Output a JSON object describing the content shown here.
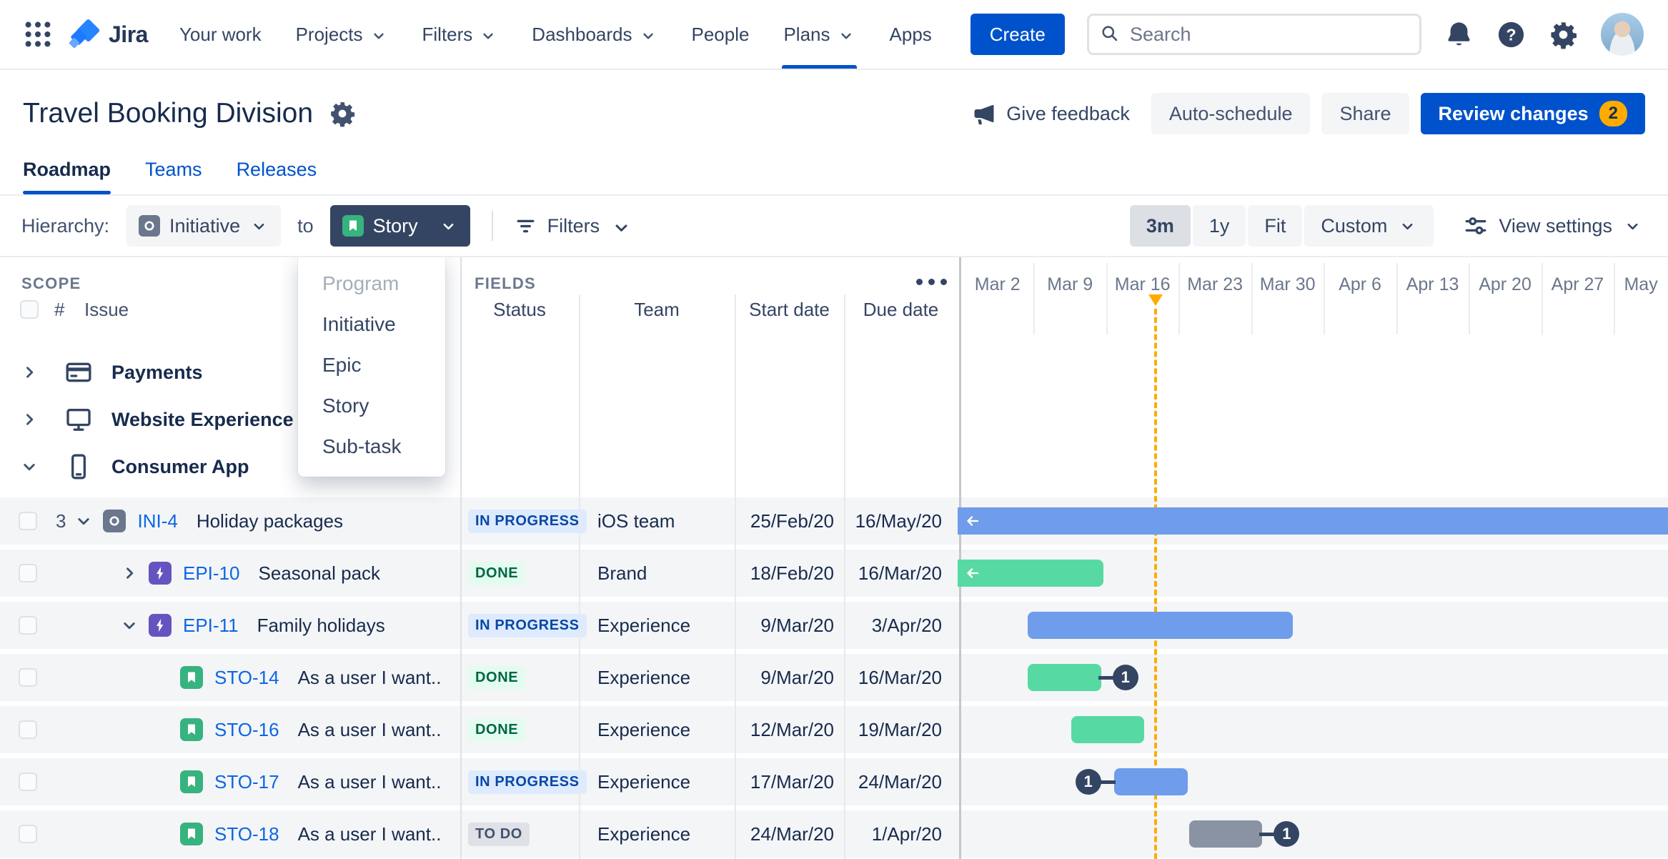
{
  "colors": {
    "accent_blue": "#0052CC",
    "bar_blue": "#6F9CEB",
    "bar_green": "#57D9A3",
    "bar_gray": "#8993A4",
    "badge_navy": "#344563",
    "today_orange": "#FFAB00"
  },
  "nav": {
    "logo_text": "Jira",
    "items": [
      {
        "label": "Your work",
        "chevron": false,
        "active": false
      },
      {
        "label": "Projects",
        "chevron": true,
        "active": false
      },
      {
        "label": "Filters",
        "chevron": true,
        "active": false
      },
      {
        "label": "Dashboards",
        "chevron": true,
        "active": false
      },
      {
        "label": "People",
        "chevron": false,
        "active": false
      },
      {
        "label": "Plans",
        "chevron": true,
        "active": true
      },
      {
        "label": "Apps",
        "chevron": false,
        "active": false
      }
    ],
    "create_label": "Create",
    "search_placeholder": "Search"
  },
  "page": {
    "title": "Travel Booking Division",
    "actions": {
      "give_feedback": "Give feedback",
      "auto_schedule": "Auto-schedule",
      "share": "Share",
      "review_changes": "Review changes",
      "review_count": "2"
    },
    "tabs": [
      {
        "label": "Roadmap",
        "active": true
      },
      {
        "label": "Teams",
        "active": false
      },
      {
        "label": "Releases",
        "active": false
      }
    ]
  },
  "toolbar": {
    "hierarchy_label": "Hierarchy:",
    "hierarchy_from": "Initiative",
    "to_label": "to",
    "hierarchy_to": "Story",
    "filters_label": "Filters",
    "range_options": [
      {
        "label": "3m",
        "selected": true,
        "chevron": false
      },
      {
        "label": "1y",
        "selected": false,
        "chevron": false
      },
      {
        "label": "Fit",
        "selected": false,
        "chevron": false
      },
      {
        "label": "Custom",
        "selected": false,
        "chevron": true
      }
    ],
    "view_settings_label": "View settings"
  },
  "hierarchy_dropdown": [
    {
      "label": "Program",
      "disabled": true
    },
    {
      "label": "Initiative",
      "disabled": false
    },
    {
      "label": "Epic",
      "disabled": false
    },
    {
      "label": "Story",
      "disabled": false
    },
    {
      "label": "Sub-task",
      "disabled": false
    }
  ],
  "board": {
    "scope_label": "SCOPE",
    "fields_label": "FIELDS",
    "issue_columns": {
      "hash": "#",
      "issue": "Issue"
    },
    "field_columns": [
      "Status",
      "Team",
      "Start date",
      "Due date"
    ],
    "groups": [
      {
        "label": "Payments",
        "icon": "credit-card",
        "expanded": false
      },
      {
        "label": "Website Experience",
        "icon": "monitor",
        "expanded": false
      },
      {
        "label": "Consumer App",
        "icon": "mobile",
        "expanded": true
      }
    ],
    "rows": [
      {
        "count": "3",
        "expander": "down",
        "type": "initiative",
        "key": "INI-4",
        "title": "Holiday packages",
        "status": "IN PROGRESS",
        "team": "iOS team",
        "start": "25/Feb/20",
        "due": "16/May/20",
        "indent": 0,
        "bar": {
          "color": "blue",
          "start_pct": 0,
          "width_pct": 101,
          "clipped_left": true,
          "square": true
        }
      },
      {
        "count": "",
        "expander": "right",
        "type": "epic",
        "key": "EPI-10",
        "title": "Seasonal pack",
        "status": "DONE",
        "team": "Brand",
        "start": "18/Feb/20",
        "due": "16/Mar/20",
        "indent": 1,
        "bar": {
          "color": "green",
          "start_pct": 0,
          "width_pct": 20.5,
          "clipped_left": true
        }
      },
      {
        "count": "",
        "expander": "down",
        "type": "epic",
        "key": "EPI-11",
        "title": "Family holidays",
        "status": "IN PROGRESS",
        "team": "Experience",
        "start": "9/Mar/20",
        "due": "3/Apr/20",
        "indent": 1,
        "bar": {
          "color": "blue",
          "start_pct": 9.9,
          "width_pct": 37.3
        }
      },
      {
        "count": "",
        "expander": "none",
        "type": "story",
        "key": "STO-14",
        "title": "As a user I want..",
        "status": "DONE",
        "team": "Experience",
        "start": "9/Mar/20",
        "due": "16/Mar/20",
        "indent": 2,
        "bar": {
          "color": "green",
          "start_pct": 9.9,
          "width_pct": 10.3,
          "badge": "right",
          "badge_label": "1"
        }
      },
      {
        "count": "",
        "expander": "none",
        "type": "story",
        "key": "STO-16",
        "title": "As a user I want..",
        "status": "DONE",
        "team": "Experience",
        "start": "12/Mar/20",
        "due": "19/Mar/20",
        "indent": 2,
        "bar": {
          "color": "green",
          "start_pct": 16.0,
          "width_pct": 10.3
        }
      },
      {
        "count": "",
        "expander": "none",
        "type": "story",
        "key": "STO-17",
        "title": "As a user I want..",
        "status": "IN PROGRESS",
        "team": "Experience",
        "start": "17/Mar/20",
        "due": "24/Mar/20",
        "indent": 2,
        "bar": {
          "color": "blue",
          "start_pct": 22.0,
          "width_pct": 10.4,
          "badge": "left",
          "badge_label": "1"
        }
      },
      {
        "count": "",
        "expander": "none",
        "type": "story",
        "key": "STO-18",
        "title": "As a user I want..",
        "status": "TO DO",
        "team": "Experience",
        "start": "24/Mar/20",
        "due": "1/Apr/20",
        "indent": 2,
        "bar": {
          "color": "gray",
          "start_pct": 32.6,
          "width_pct": 10.3,
          "badge": "right",
          "badge_label": "1"
        }
      }
    ],
    "timeline": {
      "week_labels": [
        "Mar 2",
        "Mar 9",
        "Mar 16",
        "Mar 23",
        "Mar 30",
        "Apr 6",
        "Apr 13",
        "Apr 20",
        "Apr 27",
        "May"
      ],
      "today_pct": 27.5
    }
  }
}
